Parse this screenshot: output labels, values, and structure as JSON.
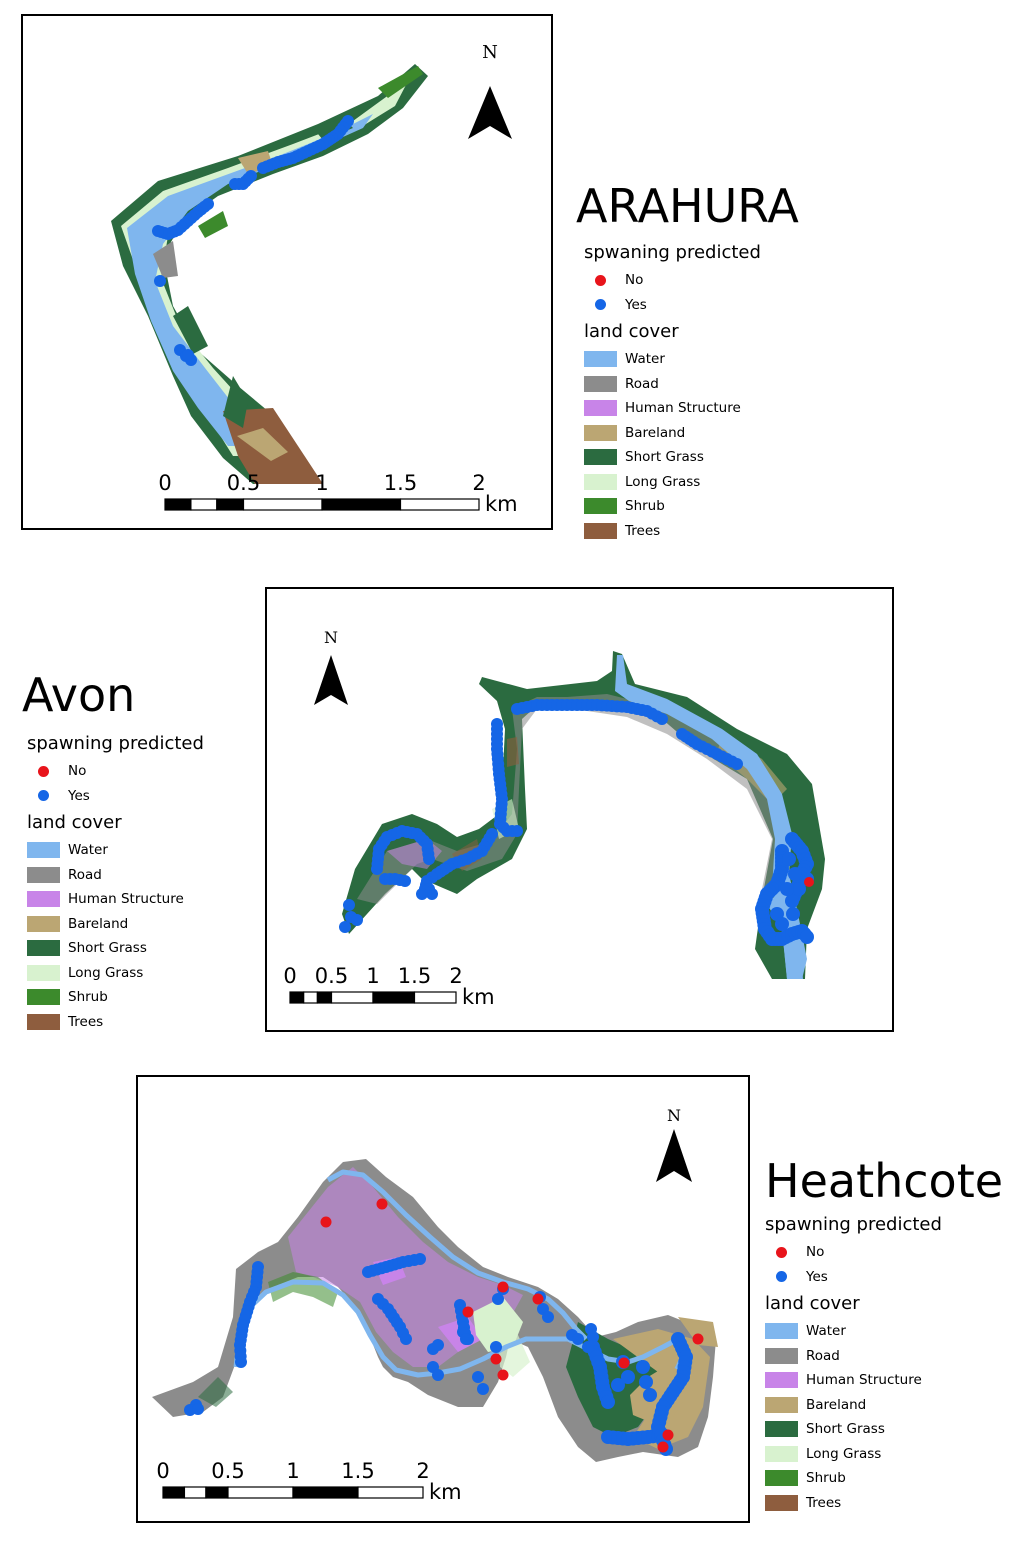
{
  "north_letter": "N",
  "colors": {
    "no": "#e8141b",
    "yes": "#1566e6",
    "Water": "#7fb6ee",
    "Road": "#8c8c8c",
    "Human Structure": "#c884e8",
    "Bareland": "#bba673",
    "Short Grass": "#2b6b40",
    "Long Grass": "#d8f2cf",
    "Shrub": "#3c8a2c",
    "Trees": "#8e5d3e"
  },
  "maps": [
    {
      "id": "arahura",
      "title": "ARAHURA",
      "spawning_header": "spwaning predicted",
      "spawning_items": [
        {
          "label": "No",
          "color": "#e8141b"
        },
        {
          "label": "Yes",
          "color": "#1566e6"
        }
      ],
      "landcover_header": "land cover",
      "landcover_items": [
        "Water",
        "Road",
        "Human Structure",
        "Bareland",
        "Short Grass",
        "Long Grass",
        "Shrub",
        "Trees"
      ],
      "scale_labels": [
        "0",
        "0.5",
        "1",
        "1.5",
        "2"
      ],
      "scale_unit": "km"
    },
    {
      "id": "avon",
      "title": "Avon",
      "spawning_header": "spawning predicted",
      "spawning_items": [
        {
          "label": "No",
          "color": "#e8141b"
        },
        {
          "label": "Yes",
          "color": "#1566e6"
        }
      ],
      "landcover_header": "land cover",
      "landcover_items": [
        "Water",
        "Road",
        "Human Structure",
        "Bareland",
        "Short Grass",
        "Long Grass",
        "Shrub",
        "Trees"
      ],
      "scale_labels": [
        "0",
        "0.5",
        "1",
        "1.5",
        "2"
      ],
      "scale_unit": "km"
    },
    {
      "id": "heathcote",
      "title": "Heathcote",
      "spawning_header": "spawning predicted",
      "spawning_items": [
        {
          "label": "No",
          "color": "#e8141b"
        },
        {
          "label": "Yes",
          "color": "#1566e6"
        }
      ],
      "landcover_header": "land cover",
      "landcover_items": [
        "Water",
        "Road",
        "Human Structure",
        "Bareland",
        "Short Grass",
        "Long Grass",
        "Shrub",
        "Trees"
      ],
      "scale_labels": [
        "0",
        "0.5",
        "1",
        "1.5",
        "2"
      ],
      "scale_unit": "km"
    }
  ]
}
